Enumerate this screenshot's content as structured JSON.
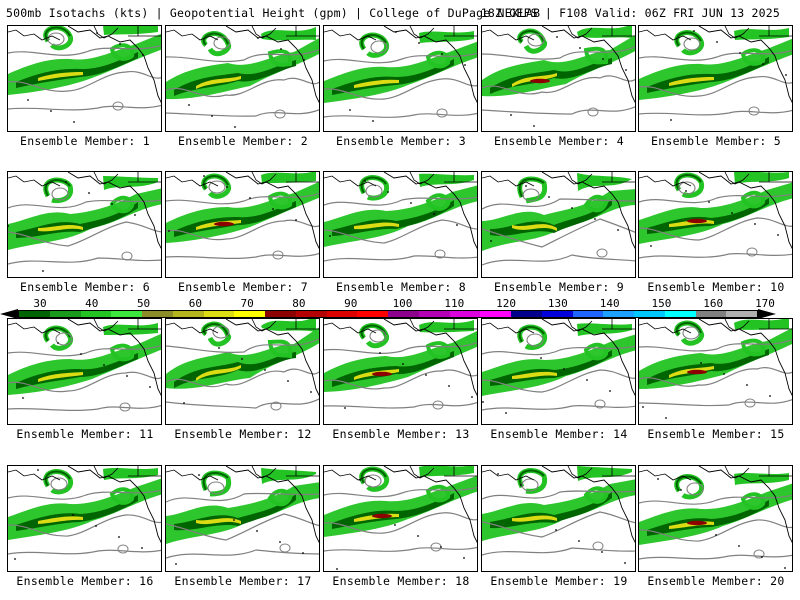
{
  "header": {
    "left": "500mb Isotachs (kts) | Geopotential Height (gpm) | College of DuPage NEXLAB",
    "right": "18Z GEFS | F108 Valid: 06Z FRI JUN 13 2025"
  },
  "panels": [
    {
      "label": "Ensemble Member: 1"
    },
    {
      "label": "Ensemble Member: 2"
    },
    {
      "label": "Ensemble Member: 3"
    },
    {
      "label": "Ensemble Member: 4"
    },
    {
      "label": "Ensemble Member: 5"
    },
    {
      "label": "Ensemble Member: 6"
    },
    {
      "label": "Ensemble Member: 7"
    },
    {
      "label": "Ensemble Member: 8"
    },
    {
      "label": "Ensemble Member: 9"
    },
    {
      "label": "Ensemble Member: 10"
    },
    {
      "label": "Ensemble Member: 11"
    },
    {
      "label": "Ensemble Member: 12"
    },
    {
      "label": "Ensemble Member: 13"
    },
    {
      "label": "Ensemble Member: 14"
    },
    {
      "label": "Ensemble Member: 15"
    },
    {
      "label": "Ensemble Member: 16"
    },
    {
      "label": "Ensemble Member: 17"
    },
    {
      "label": "Ensemble Member: 18"
    },
    {
      "label": "Ensemble Member: 19"
    },
    {
      "label": "Ensemble Member: 20"
    }
  ],
  "colorbar": {
    "ticks": [
      "30",
      "40",
      "50",
      "60",
      "70",
      "80",
      "90",
      "100",
      "110",
      "120",
      "130",
      "140",
      "150",
      "160",
      "170"
    ],
    "colors": [
      "#006400",
      "#1a9a1a",
      "#22c322",
      "#3ce63c",
      "#8c8c28",
      "#b4b41e",
      "#dcdc14",
      "#ffff00",
      "#8c0000",
      "#b40000",
      "#dc0000",
      "#ff0000",
      "#8c008c",
      "#b400b4",
      "#dc00dc",
      "#ff00ff",
      "#00008c",
      "#0000dc",
      "#1e64ff",
      "#1ea0ff",
      "#00c8ff",
      "#00ffff",
      "#808080",
      "#b0b0b0"
    ]
  },
  "map_colors": {
    "light_green": "#22c322",
    "dark_green": "#006400",
    "yellow": "#dcdc14",
    "dark_red": "#8c0000",
    "height_contour": "#808080",
    "coast": "#000000"
  }
}
